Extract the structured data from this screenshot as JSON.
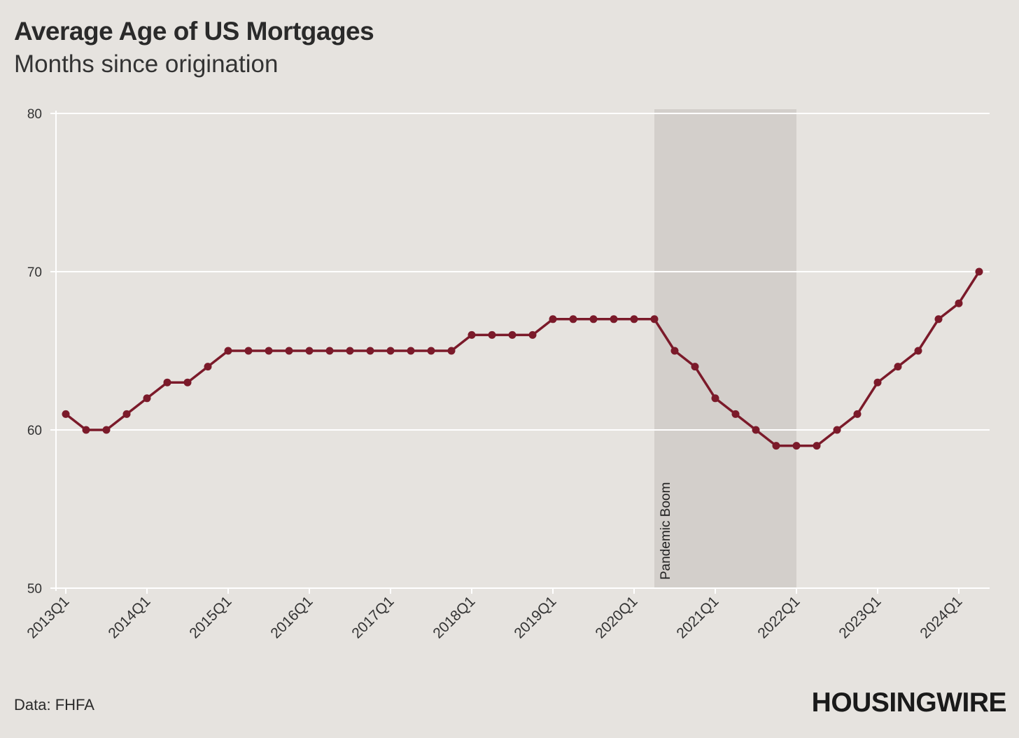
{
  "chart_data": {
    "type": "line",
    "title": "Average Age of US Mortgages",
    "subtitle": "Months since origination",
    "source": "Data: FHFA",
    "logo": "HOUSINGWIRE",
    "ylim": [
      50,
      80
    ],
    "yticks": [
      "50",
      "60",
      "70",
      "80"
    ],
    "xtick_labels": [
      "2013Q1",
      "2014Q1",
      "2015Q1",
      "2016Q1",
      "2017Q1",
      "2018Q1",
      "2019Q1",
      "2020Q1",
      "2021Q1",
      "2022Q1",
      "2023Q1",
      "2024Q1"
    ],
    "grid": true,
    "line_color": "#7b1a2a",
    "shade_color": "#d3cfcb",
    "annotation": {
      "label": "Pandemic Boom",
      "start": "2020Q2",
      "end": "2022Q1"
    },
    "x": [
      "2013Q1",
      "2013Q2",
      "2013Q3",
      "2013Q4",
      "2014Q1",
      "2014Q2",
      "2014Q3",
      "2014Q4",
      "2015Q1",
      "2015Q2",
      "2015Q3",
      "2015Q4",
      "2016Q1",
      "2016Q2",
      "2016Q3",
      "2016Q4",
      "2017Q1",
      "2017Q2",
      "2017Q3",
      "2017Q4",
      "2018Q1",
      "2018Q2",
      "2018Q3",
      "2018Q4",
      "2019Q1",
      "2019Q2",
      "2019Q3",
      "2019Q4",
      "2020Q1",
      "2020Q2",
      "2020Q3",
      "2020Q4",
      "2021Q1",
      "2021Q2",
      "2021Q3",
      "2021Q4",
      "2022Q1",
      "2022Q2",
      "2022Q3",
      "2022Q4",
      "2023Q1",
      "2023Q2",
      "2023Q3",
      "2023Q4",
      "2024Q1",
      "2024Q2"
    ],
    "values": [
      61,
      60,
      60,
      61,
      62,
      63,
      63,
      64,
      65,
      65,
      65,
      65,
      65,
      65,
      65,
      65,
      65,
      65,
      65,
      65,
      66,
      66,
      66,
      66,
      67,
      67,
      67,
      67,
      67,
      67,
      65,
      64,
      62,
      61,
      60,
      59,
      59,
      59,
      60,
      61,
      63,
      64,
      65,
      67,
      68,
      70
    ]
  }
}
